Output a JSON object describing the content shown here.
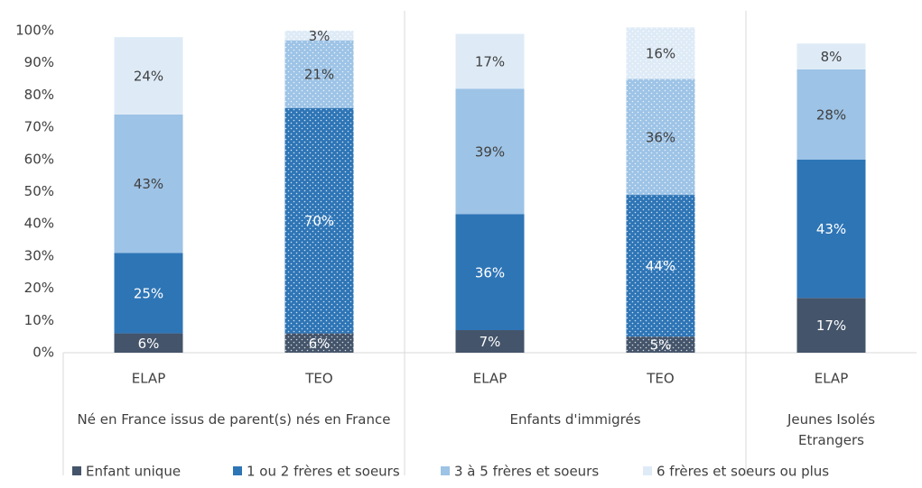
{
  "chart_data": {
    "type": "stacked_bar",
    "categories": [
      "ELAP",
      "TEO",
      "ELAP",
      "TEO",
      "ELAP"
    ],
    "groups": [
      {
        "name": "Né en France issus de parent(s) nés en France",
        "size": 2
      },
      {
        "name": "Enfants d'immigrés",
        "size": 2
      },
      {
        "name": "Jeunes  Isolés Etrangers",
        "size": 1
      }
    ],
    "hatch": [
      false,
      true,
      false,
      true,
      false
    ],
    "series": [
      {
        "name": "Enfant unique",
        "color": "#44546a",
        "label_color": "#ffffff",
        "values": [
          6,
          6,
          7,
          5,
          17
        ],
        "value_labels": [
          "6%",
          "6%",
          "7%",
          "5%",
          "17%"
        ]
      },
      {
        "name": "1 ou 2 frères et soeurs",
        "color": "#2e75b6",
        "label_color": "#ffffff",
        "values": [
          25,
          70,
          36,
          44,
          43
        ],
        "value_labels": [
          "25%",
          "70%",
          "36%",
          "44%",
          "43%"
        ]
      },
      {
        "name": "3 à 5 frères et soeurs",
        "color": "#9dc3e6",
        "label_color": "#404040",
        "values": [
          43,
          21,
          39,
          36,
          28
        ],
        "value_labels": [
          "43%",
          "21%",
          "39%",
          "36%",
          "28%"
        ]
      },
      {
        "name": "6 frères et soeurs ou plus",
        "color": "#deebf7",
        "label_color": "#404040",
        "values": [
          24,
          3,
          17,
          16,
          8
        ],
        "value_labels": [
          "24%",
          "3%",
          "17%",
          "16%",
          "8%"
        ]
      }
    ],
    "ylim": [
      0,
      100
    ],
    "yticks": [
      {
        "value": 0,
        "label": "0%"
      },
      {
        "value": 10,
        "label": "10%"
      },
      {
        "value": 20,
        "label": "20%"
      },
      {
        "value": 30,
        "label": "30%"
      },
      {
        "value": 40,
        "label": "40%"
      },
      {
        "value": 50,
        "label": "50%"
      },
      {
        "value": 60,
        "label": "60%"
      },
      {
        "value": 70,
        "label": "70%"
      },
      {
        "value": 80,
        "label": "80%"
      },
      {
        "value": 90,
        "label": "90%"
      },
      {
        "value": 100,
        "label": "100%"
      }
    ],
    "legend": "bottom"
  }
}
